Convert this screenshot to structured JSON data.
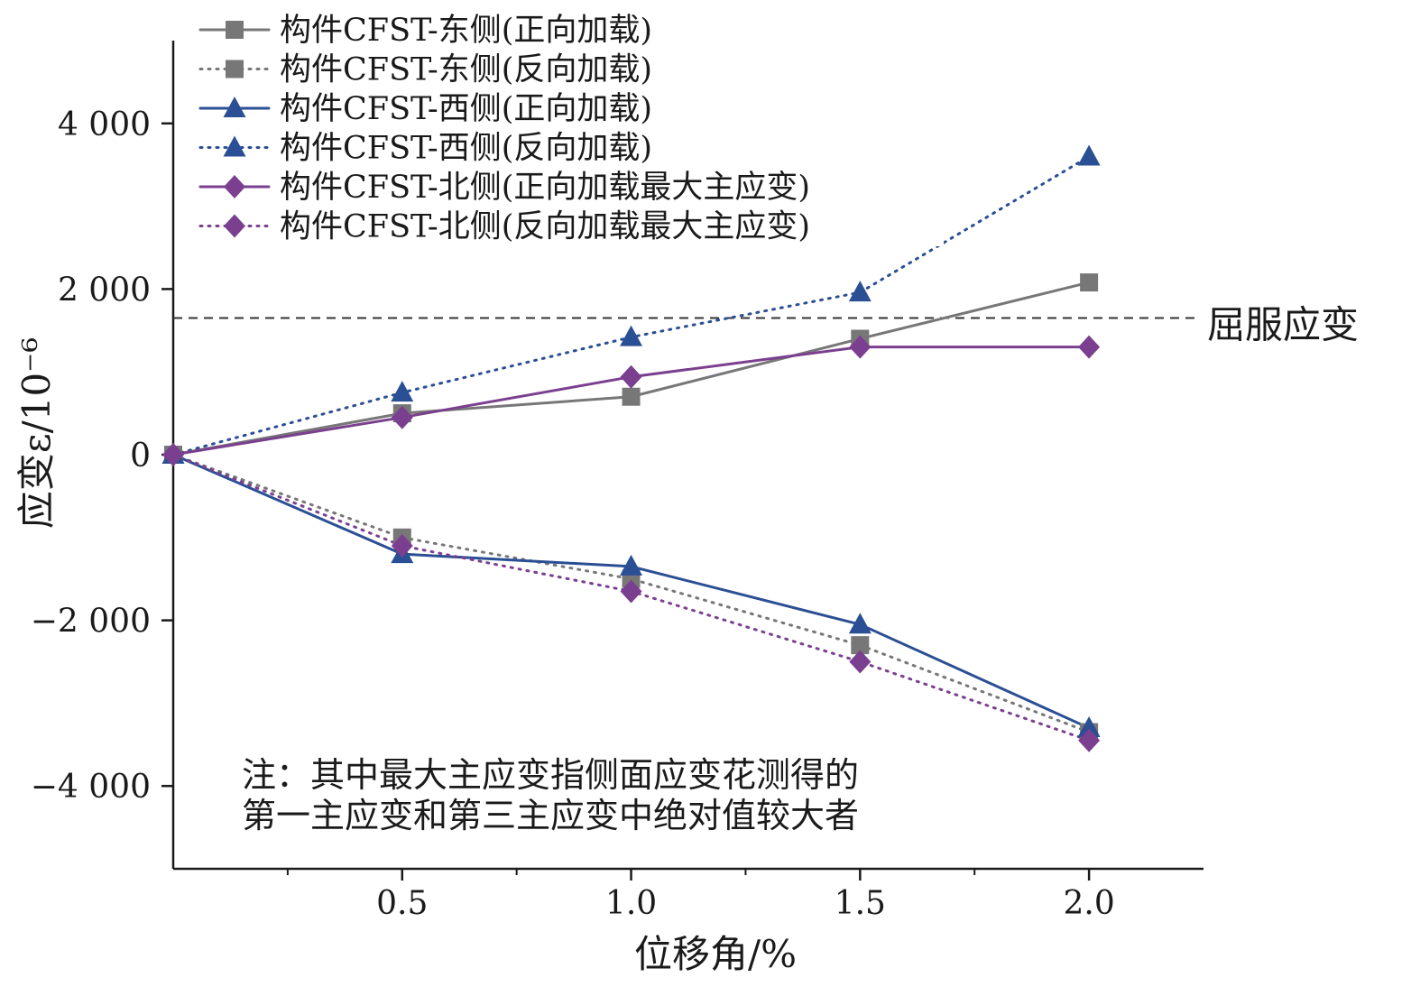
{
  "chart_data": {
    "type": "line",
    "xlabel": "位移角/%",
    "ylabel": "应变ε/10⁻⁶",
    "xlim": [
      0,
      2.25
    ],
    "ylim": [
      -5000,
      5000
    ],
    "x_ticks": [
      0.5,
      1.0,
      1.5,
      2.0
    ],
    "x_tick_labels": [
      "0.5",
      "1.0",
      "1.5",
      "2.0"
    ],
    "y_ticks": [
      -4000,
      -2000,
      0,
      2000,
      4000
    ],
    "y_tick_labels": [
      "−4 000",
      "−2 000",
      "0",
      "2 000",
      "4 000"
    ],
    "grid": false,
    "legend_position": "top-left",
    "x": [
      0,
      0.5,
      1.0,
      1.5,
      2.0
    ],
    "series": [
      {
        "name": "构件CFST-东侧(正向加载)",
        "values": [
          0,
          500,
          700,
          1400,
          2080
        ],
        "color": "#777777",
        "marker": "square",
        "line_style": "solid"
      },
      {
        "name": "构件CFST-东侧(反向加载)",
        "values": [
          0,
          -1000,
          -1500,
          -2300,
          -3350
        ],
        "color": "#777777",
        "marker": "square",
        "line_style": "dotted"
      },
      {
        "name": "构件CFST-西侧(正向加载)",
        "values": [
          0,
          -1200,
          -1350,
          -2050,
          -3300
        ],
        "color": "#2b4f94",
        "marker": "triangle",
        "line_style": "solid"
      },
      {
        "name": "构件CFST-西侧(反向加载)",
        "values": [
          0,
          750,
          1420,
          1960,
          3600
        ],
        "color": "#2b4f94",
        "marker": "triangle",
        "line_style": "dotted"
      },
      {
        "name": "构件CFST-北侧(正向加载最大主应变)",
        "values": [
          0,
          450,
          940,
          1300,
          1300
        ],
        "color": "#7b3f8f",
        "marker": "diamond",
        "line_style": "solid"
      },
      {
        "name": "构件CFST-北侧(反向加载最大主应变)",
        "values": [
          0,
          -1100,
          -1650,
          -2500,
          -3450
        ],
        "color": "#7b3f8f",
        "marker": "diamond",
        "line_style": "dotted"
      }
    ],
    "reference_line": {
      "label": "屈服应变",
      "value": 1650,
      "line_style": "dashed",
      "color": "#333333"
    },
    "annotation": {
      "lines": [
        "注：其中最大主应变指侧面应变花测得的",
        "第一主应变和第三主应变中绝对值较大者"
      ]
    }
  }
}
